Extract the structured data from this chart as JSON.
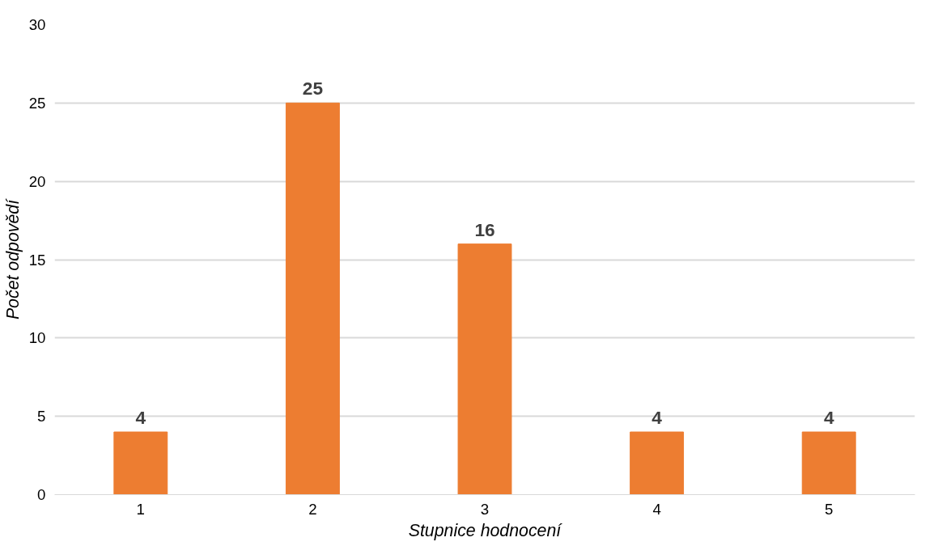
{
  "chart_data": {
    "type": "bar",
    "xlabel": "Stupnice hodnocení",
    "ylabel": "Počet odpovědí",
    "categories": [
      "1",
      "2",
      "3",
      "4",
      "5"
    ],
    "values": [
      4,
      25,
      16,
      4,
      4
    ],
    "color": "#ed7d31",
    "ylim": [
      0,
      30
    ],
    "yticks": [
      0,
      5,
      10,
      15,
      20,
      25,
      30
    ],
    "grid": "y",
    "data_labels": true
  }
}
